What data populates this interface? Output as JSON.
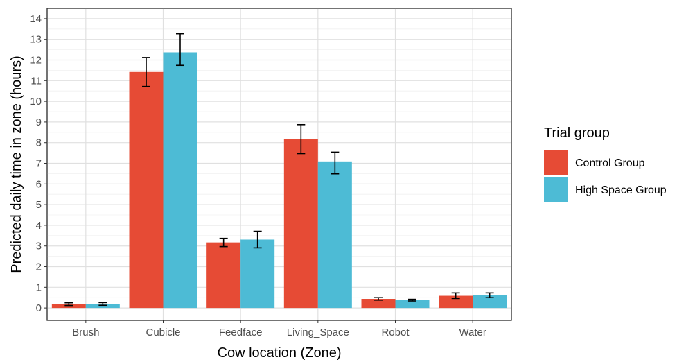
{
  "chart_data": {
    "type": "bar",
    "categories": [
      "Brush",
      "Cubicle",
      "Feedface",
      "Living_Space",
      "Robot",
      "Water"
    ],
    "series": [
      {
        "name": "Control Group",
        "color": "#E64B35",
        "values": [
          0.18,
          11.42,
          3.17,
          8.17,
          0.44,
          0.59
        ],
        "error_low": [
          0.12,
          10.72,
          2.97,
          7.47,
          0.38,
          0.46
        ],
        "error_high": [
          0.25,
          12.12,
          3.37,
          8.87,
          0.5,
          0.73
        ]
      },
      {
        "name": "High Space Group",
        "color": "#4DBBD5",
        "values": [
          0.19,
          12.37,
          3.31,
          7.09,
          0.38,
          0.61
        ],
        "error_low": [
          0.13,
          11.74,
          2.91,
          6.49,
          0.34,
          0.5
        ],
        "error_high": [
          0.26,
          13.27,
          3.71,
          7.54,
          0.42,
          0.73
        ]
      }
    ],
    "xlabel": "Cow location (Zone)",
    "ylabel": "Predicted daily time in zone (hours)",
    "ylim": [
      -0.6,
      14.5
    ],
    "yticks": [
      "0",
      "1",
      "2",
      "3",
      "4",
      "5",
      "6",
      "7",
      "8",
      "9",
      "10",
      "11",
      "12",
      "13",
      "14"
    ],
    "grid": true,
    "legend": {
      "title": "Trial group",
      "position": "right"
    }
  }
}
